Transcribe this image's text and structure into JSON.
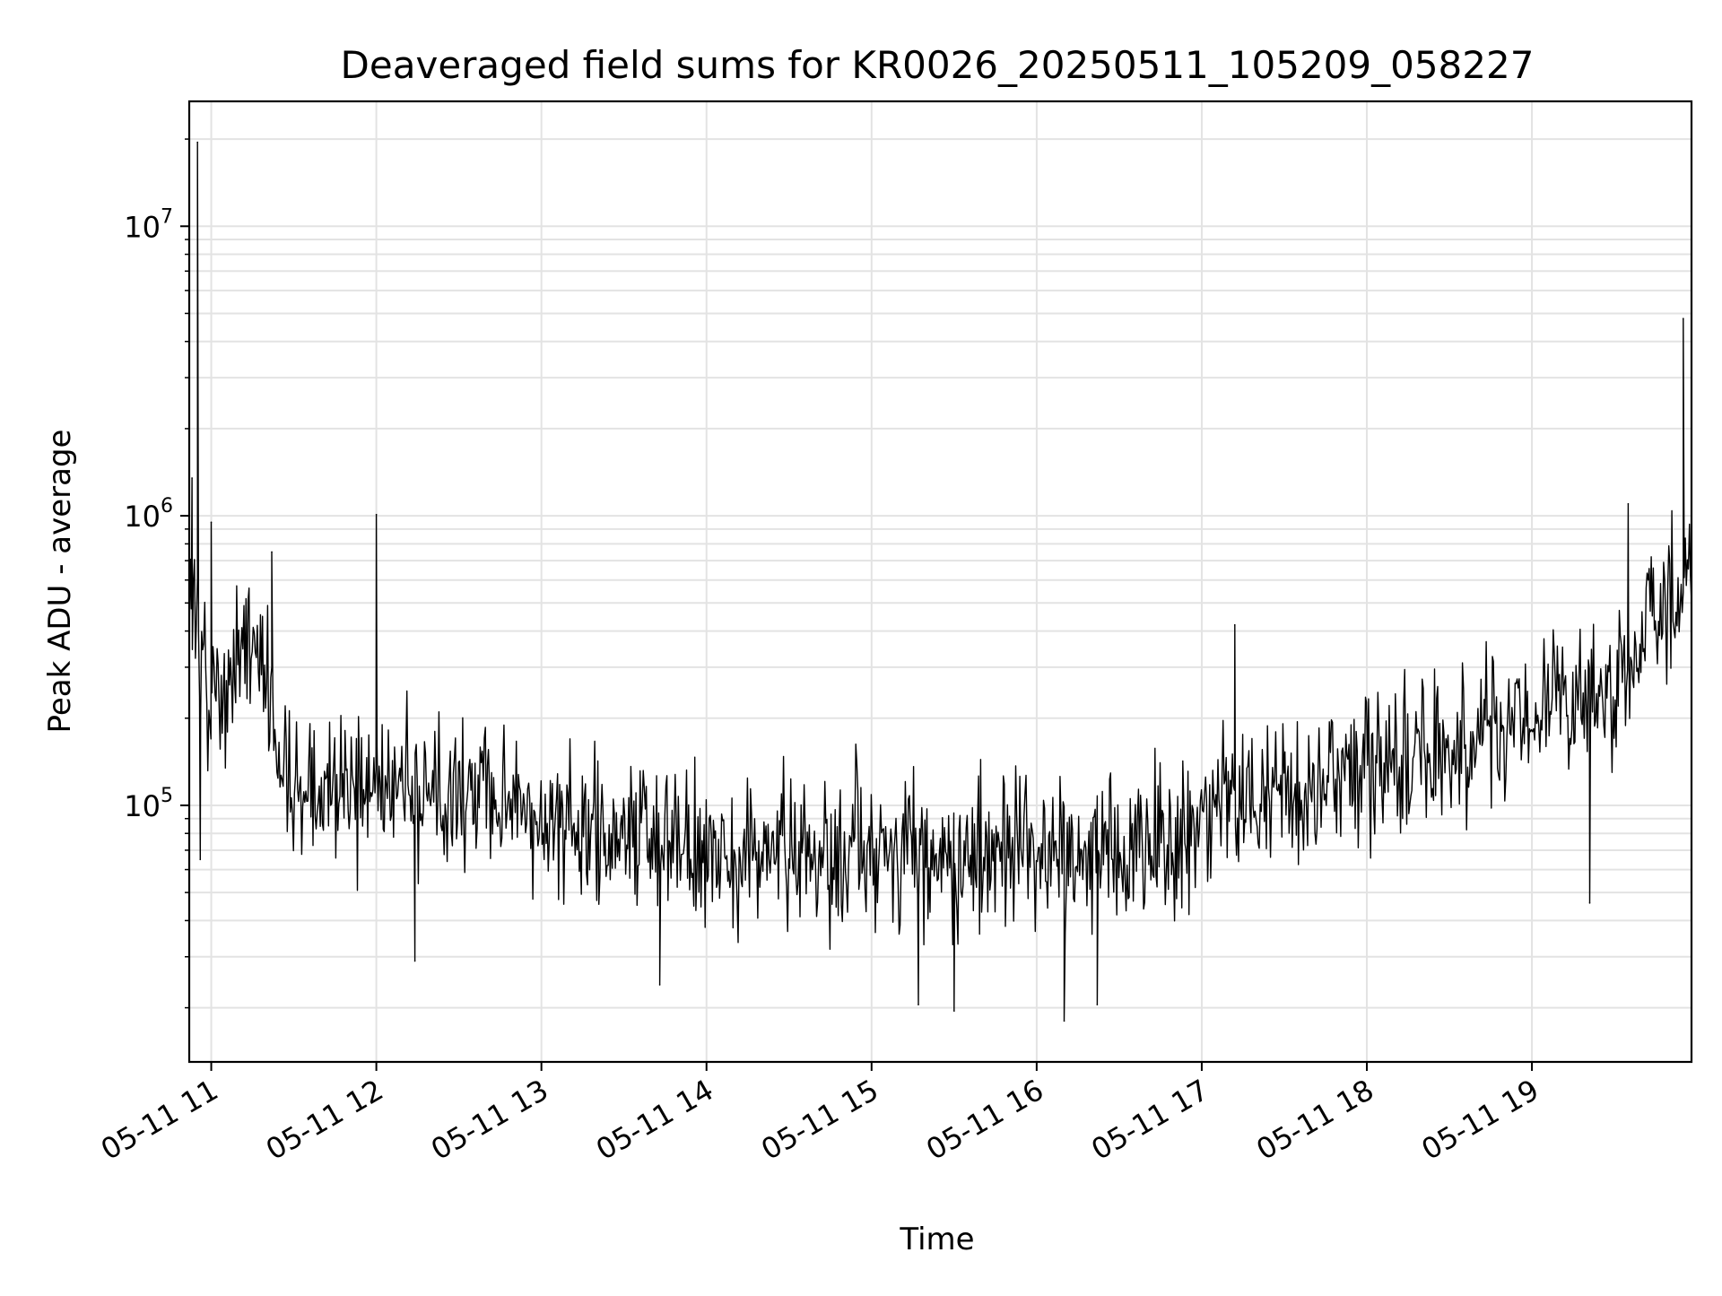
{
  "chart_data": {
    "type": "line",
    "title": "Deaveraged field sums for KR0026_20250511_105209_058227",
    "xlabel": "Time",
    "ylabel": "Peak ADU - average",
    "xscale": "time",
    "yscale": "log",
    "xlim": [
      "2025-05-11 10:52",
      "2025-05-11 19:58"
    ],
    "ylim": [
      13000,
      27000000
    ],
    "xticks": [
      "05-11 11",
      "05-11 12",
      "05-11 13",
      "05-11 14",
      "05-11 15",
      "05-11 16",
      "05-11 17",
      "05-11 18",
      "05-11 19"
    ],
    "yticks": [
      {
        "value": 100000,
        "base": "10",
        "exp": "5"
      },
      {
        "value": 1000000,
        "base": "10",
        "exp": "6"
      },
      {
        "value": 10000000,
        "base": "10",
        "exp": "7"
      }
    ],
    "grid": true,
    "line_color": "#000000",
    "series": [
      {
        "x": [
          "2025-05-11 10:52",
          "2025-05-11 10:54",
          "2025-05-11 10:56",
          "2025-05-11 11:00",
          "2025-05-11 11:05",
          "2025-05-11 11:10",
          "2025-05-11 11:15",
          "2025-05-11 11:20",
          "2025-05-11 11:25",
          "2025-05-11 11:30",
          "2025-05-11 11:35",
          "2025-05-11 11:40",
          "2025-05-11 11:50",
          "2025-05-11 12:00",
          "2025-05-11 12:15",
          "2025-05-11 12:30",
          "2025-05-11 12:45",
          "2025-05-11 13:00",
          "2025-05-11 13:15",
          "2025-05-11 13:30",
          "2025-05-11 13:45",
          "2025-05-11 14:00",
          "2025-05-11 14:15",
          "2025-05-11 14:30",
          "2025-05-11 14:45",
          "2025-05-11 15:00",
          "2025-05-11 15:15",
          "2025-05-11 15:30",
          "2025-05-11 15:45",
          "2025-05-11 16:00",
          "2025-05-11 16:15",
          "2025-05-11 16:30",
          "2025-05-11 16:45",
          "2025-05-11 17:00",
          "2025-05-11 17:15",
          "2025-05-11 17:30",
          "2025-05-11 17:45",
          "2025-05-11 18:00",
          "2025-05-11 18:15",
          "2025-05-11 18:30",
          "2025-05-11 18:45",
          "2025-05-11 19:00",
          "2025-05-11 19:15",
          "2025-05-11 19:30",
          "2025-05-11 19:35",
          "2025-05-11 19:40",
          "2025-05-11 19:45",
          "2025-05-11 19:50",
          "2025-05-11 19:55",
          "2025-05-11 19:58"
        ],
        "y": [
          400000,
          500000,
          300000,
          260000,
          250000,
          380000,
          420000,
          300000,
          160000,
          120000,
          130000,
          120000,
          110000,
          130000,
          110000,
          105000,
          110000,
          90000,
          85000,
          80000,
          75000,
          70000,
          68000,
          72000,
          70000,
          72000,
          70000,
          68000,
          70000,
          72000,
          68000,
          70000,
          78000,
          90000,
          100000,
          110000,
          120000,
          135000,
          150000,
          170000,
          190000,
          200000,
          220000,
          250000,
          280000,
          400000,
          500000,
          520000,
          560000,
          600000
        ]
      }
    ],
    "noise_band": {
      "relative_low": 0.4,
      "relative_high": 2.4,
      "points_per_hour": 160
    },
    "spikes": [
      {
        "x": "2025-05-11 10:55",
        "y": 19500000
      },
      {
        "x": "2025-05-11 10:53",
        "y": 1350000
      },
      {
        "x": "2025-05-11 11:00",
        "y": 950000
      },
      {
        "x": "2025-05-11 11:22",
        "y": 750000
      },
      {
        "x": "2025-05-11 12:00",
        "y": 1010000
      },
      {
        "x": "2025-05-11 17:12",
        "y": 420000
      },
      {
        "x": "2025-05-11 19:35",
        "y": 1100000
      },
      {
        "x": "2025-05-11 19:55",
        "y": 4800000
      },
      {
        "x": "2025-05-11 10:56",
        "y": 65000
      },
      {
        "x": "2025-05-11 12:14",
        "y": 29000
      },
      {
        "x": "2025-05-11 13:43",
        "y": 24000
      },
      {
        "x": "2025-05-11 15:30",
        "y": 19500
      },
      {
        "x": "2025-05-11 16:10",
        "y": 18000
      },
      {
        "x": "2025-05-11 16:22",
        "y": 20500
      },
      {
        "x": "2025-05-11 15:17",
        "y": 20500
      },
      {
        "x": "2025-05-11 19:21",
        "y": 46000
      }
    ]
  }
}
